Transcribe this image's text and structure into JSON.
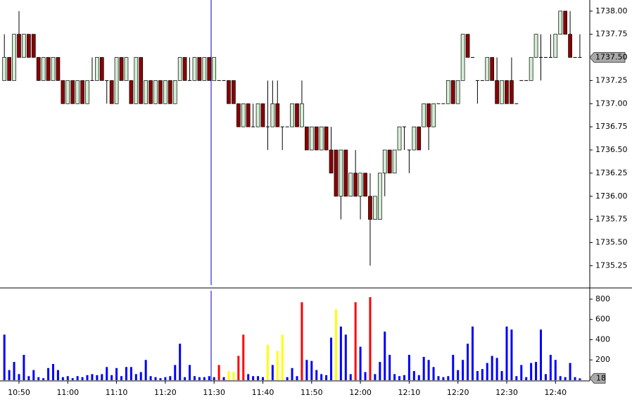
{
  "chart_data": {
    "type": "candlestick",
    "x": [
      null,
      null,
      null,
      "10:50",
      null,
      null,
      null,
      null,
      null,
      null,
      null,
      null,
      null,
      "11:00",
      null,
      null,
      null,
      null,
      null,
      null,
      null,
      null,
      null,
      "11:10",
      null,
      null,
      null,
      null,
      null,
      null,
      null,
      null,
      null,
      "11:20",
      null,
      null,
      null,
      null,
      null,
      null,
      null,
      null,
      null,
      "11:30",
      null,
      null,
      null,
      null,
      null,
      null,
      null,
      null,
      null,
      "11:40",
      null,
      null,
      null,
      null,
      null,
      null,
      null,
      null,
      null,
      "11:50",
      null,
      null,
      null,
      null,
      null,
      null,
      null,
      null,
      null,
      "12:00",
      null,
      null,
      null,
      null,
      null,
      null,
      null,
      null,
      null,
      "12:10",
      null,
      null,
      null,
      null,
      null,
      null,
      null,
      null,
      null,
      "12:20",
      null,
      null,
      null,
      null,
      null,
      null,
      null,
      null,
      null,
      "12:30",
      null,
      null,
      null,
      null,
      null,
      null,
      null,
      null,
      null,
      "12:40",
      null,
      null,
      null,
      null,
      null
    ],
    "open": [
      1737.25,
      1737.5,
      1737.25,
      1737.75,
      1737.5,
      1737.75,
      1737.75,
      1737.5,
      1737.25,
      1737.5,
      1737.25,
      1737.5,
      1737.25,
      1737,
      1737.25,
      1737,
      1737.25,
      1737,
      1737.25,
      1737.25,
      1737.5,
      1737.25,
      1737.25,
      1737,
      1737.5,
      1737.25,
      1737.25,
      1737,
      1737.5,
      1737,
      1737.25,
      1737,
      1737.25,
      1737,
      1737.25,
      1737,
      1737.25,
      1737.5,
      1737.25,
      1737.25,
      1737.5,
      1737.25,
      1737.5,
      1737.25,
      1737.25,
      1737.25,
      1737.25,
      1737.25,
      1737,
      1736.75,
      1737,
      1736.75,
      1736.75,
      1737,
      1736.75,
      1736.75,
      1737,
      1736.75,
      1736.75,
      1736.75,
      1737,
      1736.75,
      1736.75,
      1736.5,
      1736.75,
      1736.5,
      1736.75,
      1736.5,
      1736.5,
      1736,
      1736.5,
      1736,
      1736.25,
      1736,
      1736.25,
      1736,
      1735.75,
      1735.75,
      1736.25,
      1736.5,
      1736.25,
      1736.5,
      1736.75,
      1736.5,
      1736.5,
      1736.75,
      1736.75,
      1737,
      1736.75,
      1737,
      1737,
      1737,
      1737.25,
      1737,
      1737.25,
      1737.75,
      1737.5,
      1737.25,
      1737.25,
      1737.25,
      1737.5,
      1737.25,
      1737,
      1737.25,
      1737.25,
      1737,
      1737.25,
      1737.25,
      1737.25,
      1737.5,
      1737.5,
      1737.5,
      1737.5,
      1737.5,
      1737.75,
      1738,
      1737.75,
      1737.5,
      1737.5
    ],
    "high": [
      1737.75,
      1737.5,
      1737.75,
      1738,
      1737.75,
      1737.75,
      1737.75,
      1737.5,
      1737.5,
      1737.5,
      1737.5,
      1737.5,
      1737.25,
      1737.25,
      1737.25,
      1737.25,
      1737.25,
      1737.25,
      1737.5,
      1737.5,
      1737.5,
      1737.25,
      1737.25,
      1737.5,
      1737.5,
      1737.5,
      1737.25,
      1737.5,
      1737.5,
      1737.25,
      1737.25,
      1737.25,
      1737.25,
      1737.25,
      1737.25,
      1737.25,
      1737.5,
      1737.5,
      1737.5,
      1737.5,
      1737.5,
      1737.5,
      1737.5,
      1737.5,
      1737.25,
      1737.25,
      1737.25,
      1737.25,
      1737,
      1737,
      1737,
      1737,
      1737,
      1737,
      1737.25,
      1737.25,
      1737.25,
      1736.75,
      1736.75,
      1737,
      1737,
      1737.25,
      1736.75,
      1736.75,
      1736.75,
      1736.75,
      1736.75,
      1736.75,
      1736.5,
      1736.5,
      1736.5,
      1736.25,
      1736.5,
      1736.25,
      1736.25,
      1736.25,
      1736,
      1736.25,
      1736.5,
      1736.5,
      1736.5,
      1736.75,
      1736.75,
      1736.5,
      1736.75,
      1736.75,
      1737,
      1737,
      1737,
      1737,
      1737,
      1737.25,
      1737.25,
      1737.25,
      1737.75,
      1737.75,
      1737.5,
      1737.25,
      1737.25,
      1737.5,
      1737.5,
      1737.5,
      1737.25,
      1737.25,
      1737.5,
      1737,
      1737.25,
      1737.25,
      1737.5,
      1737.75,
      1737.75,
      1737.5,
      1737.75,
      1737.75,
      1738,
      1738,
      1738,
      1737.5,
      1737.75
    ],
    "low": [
      1737.25,
      1737.25,
      1737.25,
      1737.5,
      1737.5,
      1737.5,
      1737.5,
      1737.25,
      1737.25,
      1737.25,
      1737.25,
      1737.25,
      1737,
      1737,
      1737,
      1737,
      1737,
      1737,
      1737.25,
      1737.25,
      1737.25,
      1737,
      1737,
      1737,
      1737.25,
      1737.25,
      1737,
      1737,
      1737,
      1737,
      1737,
      1737,
      1737,
      1737,
      1737,
      1737,
      1737.25,
      1737.25,
      1737.25,
      1737.25,
      1737.25,
      1737.25,
      1737.25,
      1737.25,
      1737.25,
      1737.25,
      1737,
      1737,
      1736.75,
      1736.75,
      1736.75,
      1736.75,
      1736.75,
      1736.75,
      1736.5,
      1736.75,
      1736.75,
      1736.5,
      1736.75,
      1736.75,
      1736.75,
      1736.75,
      1736.5,
      1736.5,
      1736.5,
      1736.5,
      1736.5,
      1736.25,
      1736,
      1735.75,
      1736,
      1736,
      1736,
      1735.75,
      1736,
      1735.25,
      1735.75,
      1735.75,
      1736,
      1736.25,
      1736.25,
      1736.5,
      1736.5,
      1736.25,
      1736.5,
      1736.5,
      1736.75,
      1736.5,
      1736.75,
      1737,
      1737,
      1737,
      1737,
      1737,
      1737.25,
      1737.5,
      1737.5,
      1737,
      1737.25,
      1737.25,
      1737.25,
      1737,
      1737,
      1737,
      1737,
      1737,
      1737.25,
      1737.25,
      1737.25,
      1737.5,
      1737.25,
      1737.5,
      1737.5,
      1737.5,
      1737.75,
      1737.75,
      1737.5,
      1737.5,
      1737.5
    ],
    "close": [
      1737.5,
      1737.25,
      1737.75,
      1737.5,
      1737.75,
      1737.5,
      1737.5,
      1737.25,
      1737.5,
      1737.25,
      1737.5,
      1737.25,
      1737,
      1737.25,
      1737,
      1737.25,
      1737,
      1737.25,
      1737.25,
      1737.5,
      1737.25,
      1737.25,
      1737,
      1737.5,
      1737.25,
      1737.5,
      1737,
      1737.5,
      1737,
      1737.25,
      1737,
      1737.25,
      1737,
      1737.25,
      1737,
      1737.25,
      1737.5,
      1737.25,
      1737.25,
      1737.5,
      1737.25,
      1737.5,
      1737.25,
      1737.5,
      1737.25,
      1737.25,
      1737,
      1737,
      1736.75,
      1737,
      1736.75,
      1736.75,
      1737,
      1736.75,
      1736.75,
      1737,
      1736.75,
      1736.75,
      1736.75,
      1737,
      1736.75,
      1737,
      1736.5,
      1736.75,
      1736.5,
      1736.75,
      1736.5,
      1736.25,
      1736,
      1736.5,
      1736,
      1736.25,
      1736,
      1736.25,
      1736,
      1735.75,
      1736,
      1736.25,
      1736.5,
      1736.25,
      1736.5,
      1736.75,
      1736.75,
      1736.5,
      1736.75,
      1736.5,
      1737,
      1736.75,
      1737,
      1737,
      1737,
      1737.25,
      1737,
      1737.25,
      1737.75,
      1737.5,
      1737.5,
      1737.25,
      1737.25,
      1737.5,
      1737.25,
      1737,
      1737.25,
      1737,
      1737,
      1737,
      1737.25,
      1737.25,
      1737.5,
      1737.75,
      1737.5,
      1737.5,
      1737.5,
      1737.75,
      1738,
      1737.75,
      1737.5,
      1737.5,
      1737.5
    ],
    "up_color": "#d4efd4",
    "down_color": "#8b0000",
    "ylim": [
      1735.04,
      1738.12
    ],
    "yticks": [
      {
        "value": 1735.25,
        "label": "1735.25"
      },
      {
        "value": 1735.5,
        "label": "1735.50"
      },
      {
        "value": 1735.75,
        "label": "1735.75"
      },
      {
        "value": 1736,
        "label": "1736.00"
      },
      {
        "value": 1736.25,
        "label": "1736.25"
      },
      {
        "value": 1736.5,
        "label": "1736.50"
      },
      {
        "value": 1736.75,
        "label": "1736.75"
      },
      {
        "value": 1737,
        "label": "1737.00"
      },
      {
        "value": 1737.25,
        "label": "1737.25"
      },
      {
        "value": 1737.5,
        "label": "1737.50"
      },
      {
        "value": 1737.75,
        "label": "1737.75"
      },
      {
        "value": 1738,
        "label": "1738.00"
      }
    ],
    "last_price": {
      "value": 1737.5,
      "label": "1737.50"
    },
    "volume": {
      "values": [
        450,
        100,
        180,
        60,
        250,
        40,
        100,
        30,
        20,
        120,
        160,
        100,
        30,
        40,
        20,
        40,
        30,
        50,
        60,
        50,
        60,
        130,
        50,
        120,
        40,
        130,
        130,
        60,
        80,
        200,
        40,
        30,
        20,
        30,
        40,
        150,
        360,
        30,
        150,
        40,
        30,
        30,
        40,
        30,
        150,
        30,
        90,
        80,
        240,
        450,
        60,
        40,
        40,
        30,
        350,
        150,
        290,
        450,
        30,
        120,
        40,
        770,
        200,
        190,
        100,
        60,
        50,
        420,
        700,
        530,
        450,
        60,
        770,
        330,
        80,
        820,
        60,
        180,
        480,
        250,
        60,
        40,
        50,
        250,
        90,
        50,
        230,
        200,
        130,
        40,
        30,
        40,
        250,
        100,
        200,
        360,
        530,
        90,
        110,
        170,
        240,
        220,
        90,
        530,
        500,
        40,
        150,
        30,
        170,
        180,
        500,
        60,
        250,
        200,
        40,
        30,
        170,
        30,
        18
      ],
      "colors": [
        "#0000ff",
        "#0000ff",
        "#0000ff",
        "#0000ff",
        "#0000ff",
        "#0000ff",
        "#0000ff",
        "#0000ff",
        "#0000ff",
        "#0000ff",
        "#0000ff",
        "#0000ff",
        "#0000ff",
        "#0000ff",
        "#0000ff",
        "#0000ff",
        "#0000ff",
        "#0000ff",
        "#0000ff",
        "#0000ff",
        "#0000ff",
        "#0000ff",
        "#0000ff",
        "#0000ff",
        "#0000ff",
        "#0000ff",
        "#0000ff",
        "#0000ff",
        "#0000ff",
        "#0000ff",
        "#0000ff",
        "#0000ff",
        "#0000ff",
        "#0000ff",
        "#0000ff",
        "#0000ff",
        "#0000ff",
        "#0000ff",
        "#0000ff",
        "#0000ff",
        "#0000ff",
        "#0000ff",
        "#0000ff",
        "#0000ff",
        "#ff0000",
        "#0000ff",
        "#ffff00",
        "#ffff00",
        "#ff0000",
        "#ff0000",
        "#0000ff",
        "#0000ff",
        "#0000ff",
        "#0000ff",
        "#ffff00",
        "#0000ff",
        "#ffff00",
        "#ffff00",
        "#0000ff",
        "#0000ff",
        "#0000ff",
        "#ff0000",
        "#0000ff",
        "#0000ff",
        "#0000ff",
        "#0000ff",
        "#0000ff",
        "#0000ff",
        "#ffff00",
        "#0000ff",
        "#0000ff",
        "#0000ff",
        "#ff0000",
        "#0000ff",
        "#0000ff",
        "#ff0000",
        "#0000ff",
        "#0000ff",
        "#0000ff",
        "#0000ff",
        "#0000ff",
        "#0000ff",
        "#0000ff",
        "#0000ff",
        "#0000ff",
        "#0000ff",
        "#0000ff",
        "#0000ff",
        "#0000ff",
        "#0000ff",
        "#0000ff",
        "#0000ff",
        "#0000ff",
        "#0000ff",
        "#0000ff",
        "#0000ff",
        "#0000ff",
        "#0000ff",
        "#0000ff",
        "#0000ff",
        "#0000ff",
        "#0000ff",
        "#0000ff",
        "#0000ff",
        "#0000ff",
        "#0000ff",
        "#0000ff",
        "#0000ff",
        "#0000ff",
        "#0000ff",
        "#0000ff",
        "#0000ff",
        "#0000ff",
        "#0000ff",
        "#0000ff",
        "#0000ff",
        "#0000ff",
        "#0000ff",
        "#0000ff"
      ],
      "ylim": [
        0,
        890
      ],
      "yticks": [
        200,
        400,
        600,
        800
      ],
      "last_value": 18
    }
  }
}
